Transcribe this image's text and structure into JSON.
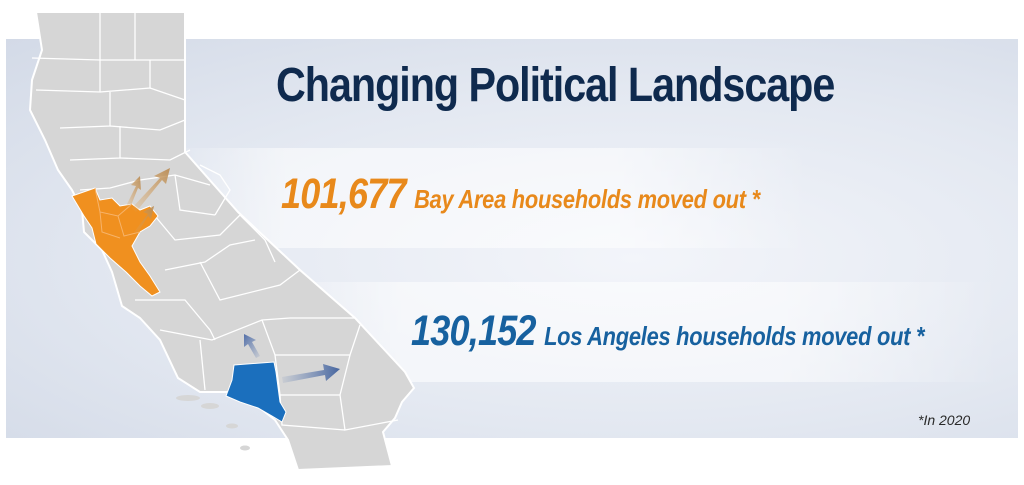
{
  "title": "Changing Political Landscape",
  "stats": [
    {
      "value": "101,677",
      "label": "Bay Area households moved out *",
      "color": "#e8891b",
      "region": "Bay Area"
    },
    {
      "value": "130,152",
      "label": "Los Angeles households moved out *",
      "color": "#17619f",
      "region": "Los Angeles"
    }
  ],
  "footnote": "*In 2020",
  "colors": {
    "state_fill": "#d6d6d6",
    "county_line": "#ffffff",
    "bay_area": "#f0901f",
    "los_angeles": "#1b6fbd",
    "title": "#0f2a4e"
  },
  "map": {
    "state": "California",
    "highlighted_regions": [
      "Bay Area",
      "Los Angeles"
    ],
    "arrows": [
      "bay-area-outflow-arrows",
      "los-angeles-outflow-arrows"
    ]
  }
}
